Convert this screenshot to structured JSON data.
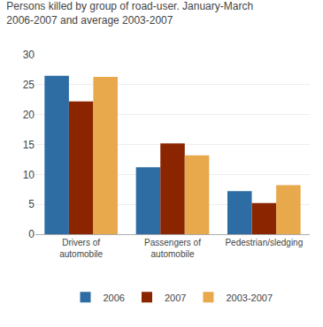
{
  "chart_data": {
    "type": "bar",
    "title": "Persons killed by group of road-user. January-March\n2006-2007 and average 2003-2007",
    "categories": [
      "Drivers of\nautomobile",
      "Passengers of\nautomobile",
      "Pedestrian/sledging"
    ],
    "series": [
      {
        "name": "2006",
        "color": "#2E6DA4",
        "values": [
          26.5,
          11.2,
          7.2
        ]
      },
      {
        "name": "2007",
        "color": "#8B2500",
        "values": [
          22.2,
          15.2,
          5.2
        ]
      },
      {
        "name": "2003-2007",
        "color": "#E8A84C",
        "values": [
          26.3,
          13.2,
          8.2
        ]
      }
    ],
    "ylim": [
      0,
      30
    ],
    "yticks": [
      0,
      5,
      10,
      15,
      20,
      25,
      30
    ],
    "grid": true,
    "legend": "bottom"
  }
}
